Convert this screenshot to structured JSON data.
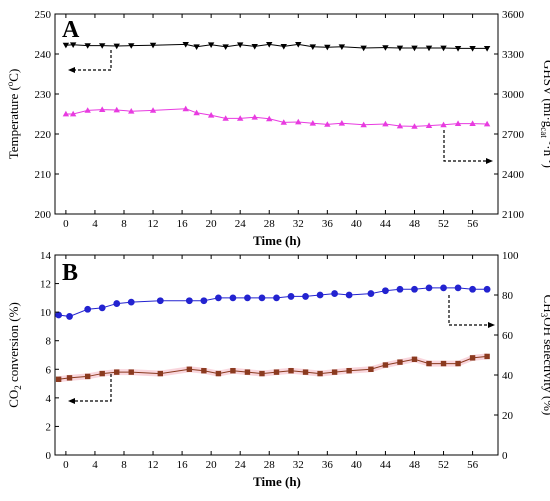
{
  "chart_data": [
    {
      "type": "line",
      "panel_label": "A",
      "xlabel": "Time (h)",
      "xlim": [
        -1.5,
        59.5
      ],
      "xticks": [
        0,
        4,
        8,
        12,
        16,
        20,
        24,
        28,
        32,
        36,
        40,
        44,
        48,
        52,
        56
      ],
      "ylabel_left": "Temperature (°C)",
      "ylim_left": [
        200,
        250
      ],
      "yticks_left": [
        200,
        210,
        220,
        230,
        240,
        250
      ],
      "ylabel_right": "GHSV (ml·g-cat-1·h-1)",
      "ylim_right": [
        2100,
        3600
      ],
      "yticks_right": [
        2100,
        2400,
        2700,
        3000,
        3300,
        3600
      ],
      "series": [
        {
          "axis": "left",
          "marker": "triangle-down",
          "color": "#000000",
          "x": [
            0,
            1,
            3,
            5,
            7,
            9,
            12,
            16.5,
            18,
            20,
            22,
            24,
            26,
            28,
            30,
            32,
            34,
            36,
            38,
            41,
            44,
            46,
            48,
            50,
            52,
            54,
            56,
            58
          ],
          "values": [
            242.2,
            242.3,
            242.1,
            242.1,
            242.0,
            242.1,
            242.2,
            242.4,
            241.8,
            242.3,
            241.8,
            242.3,
            241.9,
            242.4,
            241.9,
            242.4,
            241.8,
            241.7,
            241.8,
            241.5,
            241.6,
            241.5,
            241.5,
            241.5,
            241.5,
            241.4,
            241.4,
            241.4
          ]
        },
        {
          "axis": "left",
          "marker": "triangle-up",
          "color": "#e83be0",
          "x": [
            0,
            1,
            3,
            5,
            7,
            9,
            12,
            16.5,
            18,
            20,
            22,
            24,
            26,
            28,
            30,
            32,
            34,
            36,
            38,
            41,
            44,
            46,
            48,
            50,
            52,
            54,
            56,
            58
          ],
          "values": [
            225.0,
            225.0,
            225.9,
            226.1,
            226.0,
            225.7,
            225.9,
            226.3,
            225.3,
            224.7,
            223.9,
            223.9,
            224.2,
            223.8,
            222.9,
            223.0,
            222.7,
            222.4,
            222.7,
            222.3,
            222.5,
            222.0,
            221.9,
            222.1,
            222.3,
            222.6,
            222.6,
            222.5
          ]
        }
      ]
    },
    {
      "type": "line",
      "panel_label": "B",
      "xlabel": "Time (h)",
      "xlim": [
        -1.5,
        59.5
      ],
      "xticks": [
        0,
        4,
        8,
        12,
        16,
        20,
        24,
        28,
        32,
        36,
        40,
        44,
        48,
        52,
        56
      ],
      "ylabel_left": "CO2 conversion (%)",
      "ylim_left": [
        0,
        14
      ],
      "yticks_left": [
        0,
        2,
        4,
        6,
        8,
        10,
        12,
        14
      ],
      "ylabel_right": "CH3OH selectivity (%)",
      "ylim_right": [
        0,
        100
      ],
      "yticks_right": [
        0,
        20,
        40,
        60,
        80,
        100
      ],
      "series": [
        {
          "axis": "left",
          "marker": "circle",
          "color": "#2323d0",
          "x": [
            -1,
            0.5,
            3,
            5,
            7,
            9,
            13,
            17,
            19,
            21,
            23,
            25,
            27,
            29,
            31,
            33,
            35,
            37,
            39,
            42,
            44,
            46,
            48,
            50,
            52,
            54,
            56,
            58
          ],
          "values": [
            9.8,
            9.7,
            10.2,
            10.3,
            10.6,
            10.7,
            10.8,
            10.8,
            10.8,
            11.0,
            11.0,
            11.0,
            11.0,
            11.0,
            11.1,
            11.1,
            11.2,
            11.3,
            11.2,
            11.3,
            11.5,
            11.6,
            11.6,
            11.7,
            11.7,
            11.7,
            11.6,
            11.6
          ]
        },
        {
          "axis": "left",
          "marker": "square",
          "color": "#8b3a1f",
          "band_color": "#f7c4cf",
          "x": [
            -1,
            0.5,
            3,
            5,
            7,
            9,
            13,
            17,
            19,
            21,
            23,
            25,
            27,
            29,
            31,
            33,
            35,
            37,
            39,
            42,
            44,
            46,
            48,
            50,
            52,
            54,
            56,
            58
          ],
          "values": [
            5.3,
            5.4,
            5.5,
            5.7,
            5.8,
            5.8,
            5.7,
            6.0,
            5.9,
            5.7,
            5.9,
            5.8,
            5.7,
            5.8,
            5.9,
            5.8,
            5.7,
            5.8,
            5.9,
            6.0,
            6.3,
            6.5,
            6.7,
            6.4,
            6.4,
            6.4,
            6.8,
            6.9
          ]
        }
      ]
    }
  ]
}
